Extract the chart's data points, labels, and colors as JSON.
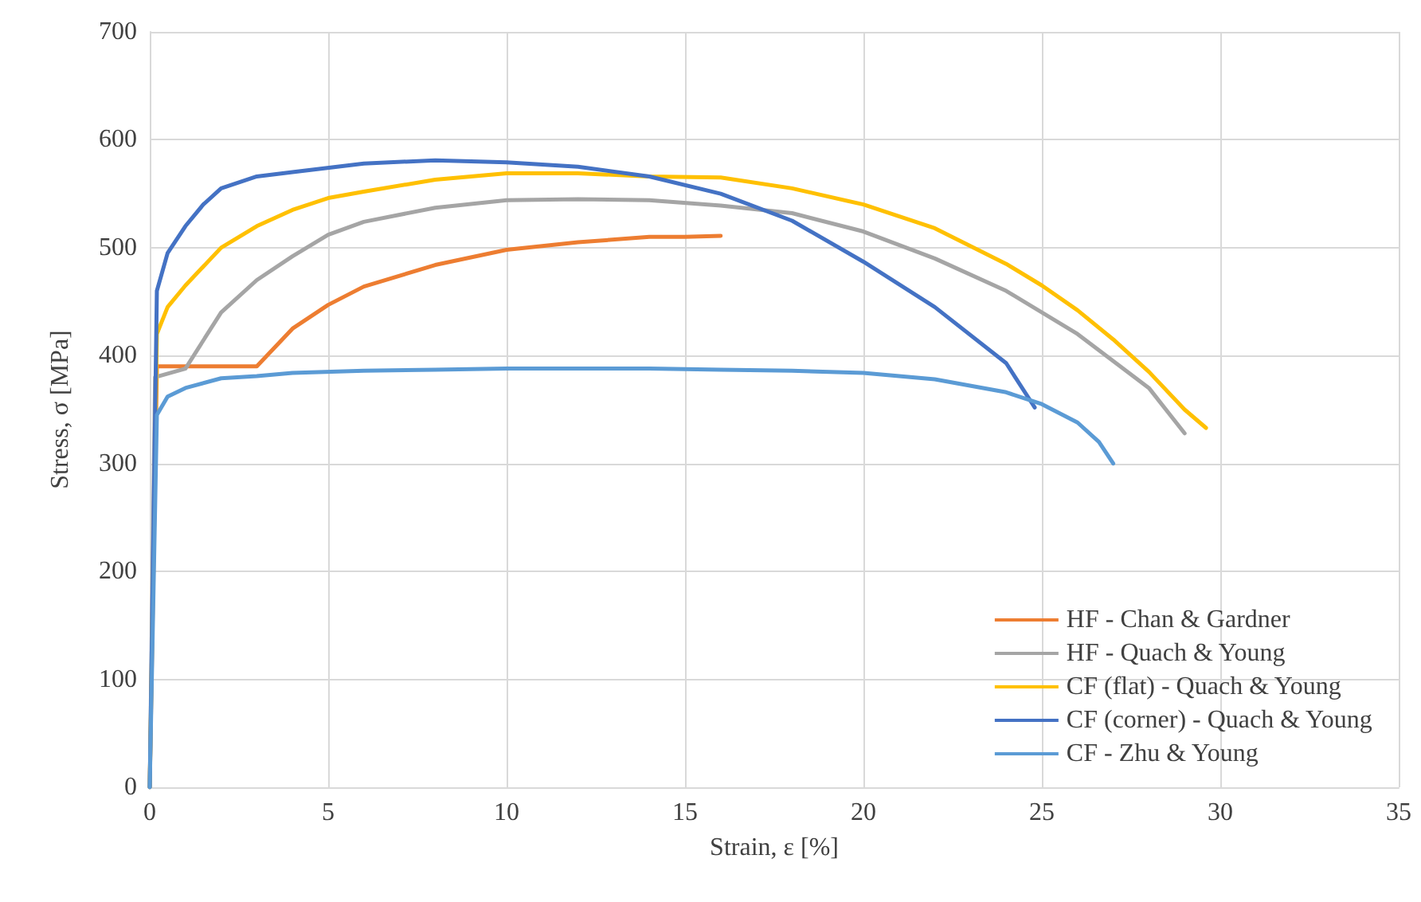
{
  "chart_data": {
    "type": "line",
    "xlabel": "Strain, ε [%]",
    "ylabel": "Stress, σ [MPa]",
    "xlim": [
      0,
      35
    ],
    "xticks": [
      0,
      5,
      10,
      15,
      20,
      25,
      30,
      35
    ],
    "ylim": [
      0,
      700
    ],
    "yticks": [
      0,
      100,
      200,
      300,
      400,
      500,
      600,
      700
    ],
    "grid": true,
    "legend": "bottom right",
    "marker": "none",
    "line_style": "solid",
    "series": [
      {
        "name": "HF - Chan & Gardner",
        "color": "#ed7d31",
        "x": [
          0,
          0.2,
          1,
          3,
          4,
          5,
          6,
          8,
          10,
          12,
          14,
          15,
          16
        ],
        "values": [
          0,
          390,
          390,
          390,
          425,
          447,
          464,
          484,
          498,
          505,
          510,
          510,
          511
        ]
      },
      {
        "name": "HF - Quach & Young",
        "color": "#a5a5a5",
        "x": [
          0,
          0.15,
          1,
          2,
          3,
          4,
          5,
          6,
          8,
          10,
          12,
          14,
          16,
          18,
          20,
          22,
          24,
          26,
          28,
          29
        ],
        "values": [
          0,
          380,
          388,
          440,
          470,
          492,
          512,
          524,
          537,
          544,
          545,
          544,
          539,
          532,
          515,
          490,
          460,
          420,
          370,
          328
        ]
      },
      {
        "name": "CF (flat) - Quach & Young",
        "color": "#ffc000",
        "x": [
          0,
          0.2,
          0.5,
          1,
          2,
          3,
          4,
          5,
          6,
          8,
          10,
          12,
          14,
          16,
          18,
          20,
          22,
          24,
          25,
          26,
          27,
          28,
          29,
          29.6
        ],
        "values": [
          0,
          420,
          445,
          465,
          500,
          520,
          535,
          546,
          552,
          563,
          569,
          569,
          566,
          565,
          555,
          540,
          518,
          485,
          465,
          442,
          415,
          385,
          350,
          333
        ]
      },
      {
        "name": "CF (corner) - Quach & Young",
        "color": "#4472c4",
        "x": [
          0,
          0.2,
          0.5,
          1,
          1.5,
          2,
          3,
          4,
          6,
          8,
          10,
          12,
          14,
          16,
          18,
          20,
          22,
          24,
          24.8
        ],
        "values": [
          0,
          460,
          495,
          520,
          540,
          555,
          566,
          570,
          578,
          581,
          579,
          575,
          566,
          550,
          525,
          487,
          445,
          393,
          352
        ]
      },
      {
        "name": "CF - Zhu & Young",
        "color": "#5b9bd5",
        "x": [
          0,
          0.2,
          0.5,
          1,
          2,
          3,
          4,
          6,
          8,
          10,
          14,
          16,
          18,
          20,
          22,
          24,
          25,
          26,
          26.6,
          27
        ],
        "values": [
          0,
          345,
          362,
          370,
          379,
          381,
          384,
          386,
          387,
          388,
          388,
          387,
          386,
          384,
          378,
          366,
          355,
          338,
          320,
          300
        ]
      }
    ]
  }
}
